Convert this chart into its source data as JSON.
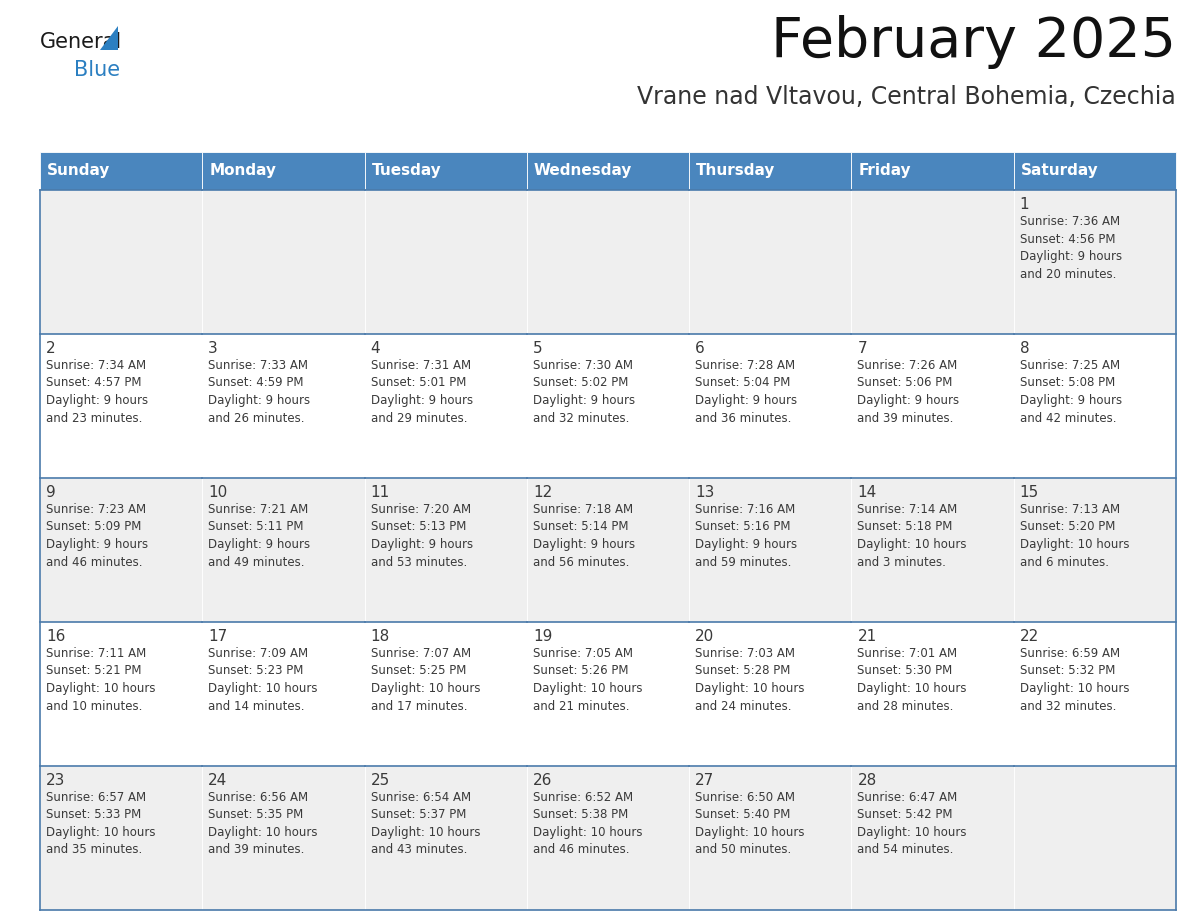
{
  "title": "February 2025",
  "subtitle": "Vrane nad Vltavou, Central Bohemia, Czechia",
  "header_color": "#4a86be",
  "header_text_color": "#ffffff",
  "cell_bg_even": "#efefef",
  "cell_bg_odd": "#ffffff",
  "day_text_color": "#3a3a3a",
  "info_text_color": "#3a3a3a",
  "border_color": "#4a7aaa",
  "days_of_week": [
    "Sunday",
    "Monday",
    "Tuesday",
    "Wednesday",
    "Thursday",
    "Friday",
    "Saturday"
  ],
  "weeks": [
    [
      {
        "day": null,
        "info": null
      },
      {
        "day": null,
        "info": null
      },
      {
        "day": null,
        "info": null
      },
      {
        "day": null,
        "info": null
      },
      {
        "day": null,
        "info": null
      },
      {
        "day": null,
        "info": null
      },
      {
        "day": "1",
        "info": "Sunrise: 7:36 AM\nSunset: 4:56 PM\nDaylight: 9 hours\nand 20 minutes."
      }
    ],
    [
      {
        "day": "2",
        "info": "Sunrise: 7:34 AM\nSunset: 4:57 PM\nDaylight: 9 hours\nand 23 minutes."
      },
      {
        "day": "3",
        "info": "Sunrise: 7:33 AM\nSunset: 4:59 PM\nDaylight: 9 hours\nand 26 minutes."
      },
      {
        "day": "4",
        "info": "Sunrise: 7:31 AM\nSunset: 5:01 PM\nDaylight: 9 hours\nand 29 minutes."
      },
      {
        "day": "5",
        "info": "Sunrise: 7:30 AM\nSunset: 5:02 PM\nDaylight: 9 hours\nand 32 minutes."
      },
      {
        "day": "6",
        "info": "Sunrise: 7:28 AM\nSunset: 5:04 PM\nDaylight: 9 hours\nand 36 minutes."
      },
      {
        "day": "7",
        "info": "Sunrise: 7:26 AM\nSunset: 5:06 PM\nDaylight: 9 hours\nand 39 minutes."
      },
      {
        "day": "8",
        "info": "Sunrise: 7:25 AM\nSunset: 5:08 PM\nDaylight: 9 hours\nand 42 minutes."
      }
    ],
    [
      {
        "day": "9",
        "info": "Sunrise: 7:23 AM\nSunset: 5:09 PM\nDaylight: 9 hours\nand 46 minutes."
      },
      {
        "day": "10",
        "info": "Sunrise: 7:21 AM\nSunset: 5:11 PM\nDaylight: 9 hours\nand 49 minutes."
      },
      {
        "day": "11",
        "info": "Sunrise: 7:20 AM\nSunset: 5:13 PM\nDaylight: 9 hours\nand 53 minutes."
      },
      {
        "day": "12",
        "info": "Sunrise: 7:18 AM\nSunset: 5:14 PM\nDaylight: 9 hours\nand 56 minutes."
      },
      {
        "day": "13",
        "info": "Sunrise: 7:16 AM\nSunset: 5:16 PM\nDaylight: 9 hours\nand 59 minutes."
      },
      {
        "day": "14",
        "info": "Sunrise: 7:14 AM\nSunset: 5:18 PM\nDaylight: 10 hours\nand 3 minutes."
      },
      {
        "day": "15",
        "info": "Sunrise: 7:13 AM\nSunset: 5:20 PM\nDaylight: 10 hours\nand 6 minutes."
      }
    ],
    [
      {
        "day": "16",
        "info": "Sunrise: 7:11 AM\nSunset: 5:21 PM\nDaylight: 10 hours\nand 10 minutes."
      },
      {
        "day": "17",
        "info": "Sunrise: 7:09 AM\nSunset: 5:23 PM\nDaylight: 10 hours\nand 14 minutes."
      },
      {
        "day": "18",
        "info": "Sunrise: 7:07 AM\nSunset: 5:25 PM\nDaylight: 10 hours\nand 17 minutes."
      },
      {
        "day": "19",
        "info": "Sunrise: 7:05 AM\nSunset: 5:26 PM\nDaylight: 10 hours\nand 21 minutes."
      },
      {
        "day": "20",
        "info": "Sunrise: 7:03 AM\nSunset: 5:28 PM\nDaylight: 10 hours\nand 24 minutes."
      },
      {
        "day": "21",
        "info": "Sunrise: 7:01 AM\nSunset: 5:30 PM\nDaylight: 10 hours\nand 28 minutes."
      },
      {
        "day": "22",
        "info": "Sunrise: 6:59 AM\nSunset: 5:32 PM\nDaylight: 10 hours\nand 32 minutes."
      }
    ],
    [
      {
        "day": "23",
        "info": "Sunrise: 6:57 AM\nSunset: 5:33 PM\nDaylight: 10 hours\nand 35 minutes."
      },
      {
        "day": "24",
        "info": "Sunrise: 6:56 AM\nSunset: 5:35 PM\nDaylight: 10 hours\nand 39 minutes."
      },
      {
        "day": "25",
        "info": "Sunrise: 6:54 AM\nSunset: 5:37 PM\nDaylight: 10 hours\nand 43 minutes."
      },
      {
        "day": "26",
        "info": "Sunrise: 6:52 AM\nSunset: 5:38 PM\nDaylight: 10 hours\nand 46 minutes."
      },
      {
        "day": "27",
        "info": "Sunrise: 6:50 AM\nSunset: 5:40 PM\nDaylight: 10 hours\nand 50 minutes."
      },
      {
        "day": "28",
        "info": "Sunrise: 6:47 AM\nSunset: 5:42 PM\nDaylight: 10 hours\nand 54 minutes."
      },
      {
        "day": null,
        "info": null
      }
    ]
  ],
  "logo_general_color": "#1a1a1a",
  "logo_blue_color": "#2b7fc1",
  "logo_triangle_color": "#2b7fc1",
  "title_fontsize": 40,
  "subtitle_fontsize": 17,
  "header_fontsize": 11,
  "day_num_fontsize": 11,
  "info_fontsize": 8.5
}
